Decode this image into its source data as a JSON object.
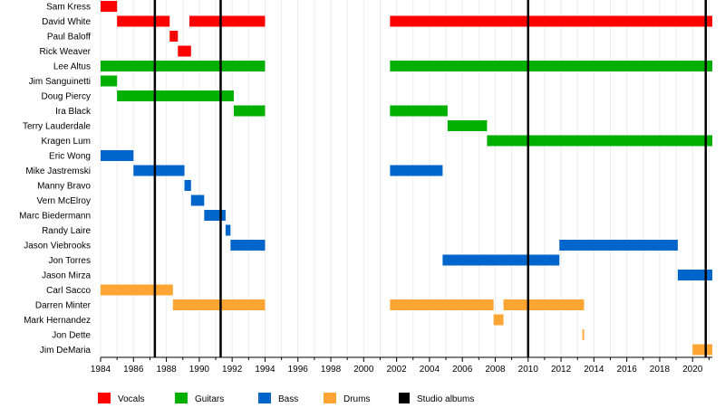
{
  "chart_data": {
    "type": "timeline",
    "xlim": [
      1984,
      2021.2
    ],
    "x_ticks": [
      1984,
      1986,
      1988,
      1990,
      1992,
      1994,
      1996,
      1998,
      2000,
      2002,
      2004,
      2006,
      2008,
      2010,
      2012,
      2014,
      2016,
      2018,
      2020
    ],
    "grid": true,
    "legend_position": "bottom",
    "roles": [
      {
        "key": "vocals",
        "name": "Vocals",
        "color": "#ff0000"
      },
      {
        "key": "guitars",
        "name": "Guitars",
        "color": "#00b000"
      },
      {
        "key": "bass",
        "name": "Bass",
        "color": "#0066cc"
      },
      {
        "key": "drums",
        "name": "Drums",
        "color": "#ffa533"
      },
      {
        "key": "albums",
        "name": "Studio albums",
        "color": "#000000"
      }
    ],
    "members": [
      {
        "name": "Sam Kress",
        "role": "vocals",
        "periods": [
          [
            1984.0,
            1985.0
          ]
        ]
      },
      {
        "name": "David White",
        "role": "vocals",
        "periods": [
          [
            1985.0,
            1988.2
          ],
          [
            1989.4,
            1994.0
          ],
          [
            2001.6,
            2021.2
          ]
        ]
      },
      {
        "name": "Paul Baloff",
        "role": "vocals",
        "periods": [
          [
            1988.2,
            1988.7
          ]
        ]
      },
      {
        "name": "Rick Weaver",
        "role": "vocals",
        "periods": [
          [
            1988.7,
            1989.5
          ]
        ]
      },
      {
        "name": "Lee Altus",
        "role": "guitars",
        "periods": [
          [
            1984.0,
            1994.0
          ],
          [
            2001.6,
            2021.2
          ]
        ]
      },
      {
        "name": "Jim Sanguinetti",
        "role": "guitars",
        "periods": [
          [
            1984.0,
            1985.0
          ]
        ]
      },
      {
        "name": "Doug Piercy",
        "role": "guitars",
        "periods": [
          [
            1985.0,
            1992.1
          ]
        ]
      },
      {
        "name": "Ira Black",
        "role": "guitars",
        "periods": [
          [
            1992.1,
            1994.0
          ],
          [
            2001.6,
            2005.1
          ]
        ]
      },
      {
        "name": "Terry Lauderdale",
        "role": "guitars",
        "periods": [
          [
            2005.1,
            2007.5
          ]
        ]
      },
      {
        "name": "Kragen Lum",
        "role": "guitars",
        "periods": [
          [
            2007.5,
            2021.2
          ]
        ]
      },
      {
        "name": "Eric Wong",
        "role": "bass",
        "periods": [
          [
            1984.0,
            1986.0
          ]
        ]
      },
      {
        "name": "Mike Jastremski",
        "role": "bass",
        "periods": [
          [
            1986.0,
            1989.1
          ],
          [
            2001.6,
            2004.8
          ]
        ]
      },
      {
        "name": "Manny Bravo",
        "role": "bass",
        "periods": [
          [
            1989.1,
            1989.5
          ]
        ]
      },
      {
        "name": "Vern McElroy",
        "role": "bass",
        "periods": [
          [
            1989.5,
            1990.3
          ]
        ]
      },
      {
        "name": "Marc Biedermann",
        "role": "bass",
        "periods": [
          [
            1990.3,
            1991.6
          ]
        ]
      },
      {
        "name": "Randy Laire",
        "role": "bass",
        "periods": [
          [
            1991.6,
            1991.9
          ]
        ]
      },
      {
        "name": "Jason Viebrooks",
        "role": "bass",
        "periods": [
          [
            1991.9,
            1994.0
          ],
          [
            2011.9,
            2019.1
          ]
        ]
      },
      {
        "name": "Jon Torres",
        "role": "bass",
        "periods": [
          [
            2004.8,
            2011.9
          ]
        ]
      },
      {
        "name": "Jason Mirza",
        "role": "bass",
        "periods": [
          [
            2019.1,
            2021.2
          ]
        ]
      },
      {
        "name": "Carl Sacco",
        "role": "drums",
        "periods": [
          [
            1984.0,
            1988.4
          ]
        ]
      },
      {
        "name": "Darren Minter",
        "role": "drums",
        "periods": [
          [
            1988.4,
            1994.0
          ],
          [
            2001.6,
            2007.9
          ],
          [
            2008.5,
            2013.4
          ]
        ]
      },
      {
        "name": "Mark Hernandez",
        "role": "drums",
        "periods": [
          [
            2007.9,
            2008.5
          ]
        ]
      },
      {
        "name": "Jon Dette",
        "role": "drums",
        "periods": [
          [
            2013.3,
            2013.4
          ]
        ]
      },
      {
        "name": "Jim DeMaria",
        "role": "drums",
        "periods": [
          [
            2020.0,
            2021.2
          ]
        ]
      }
    ],
    "studio_albums": [
      1987.3,
      1991.3,
      2010.0,
      2020.8
    ]
  }
}
